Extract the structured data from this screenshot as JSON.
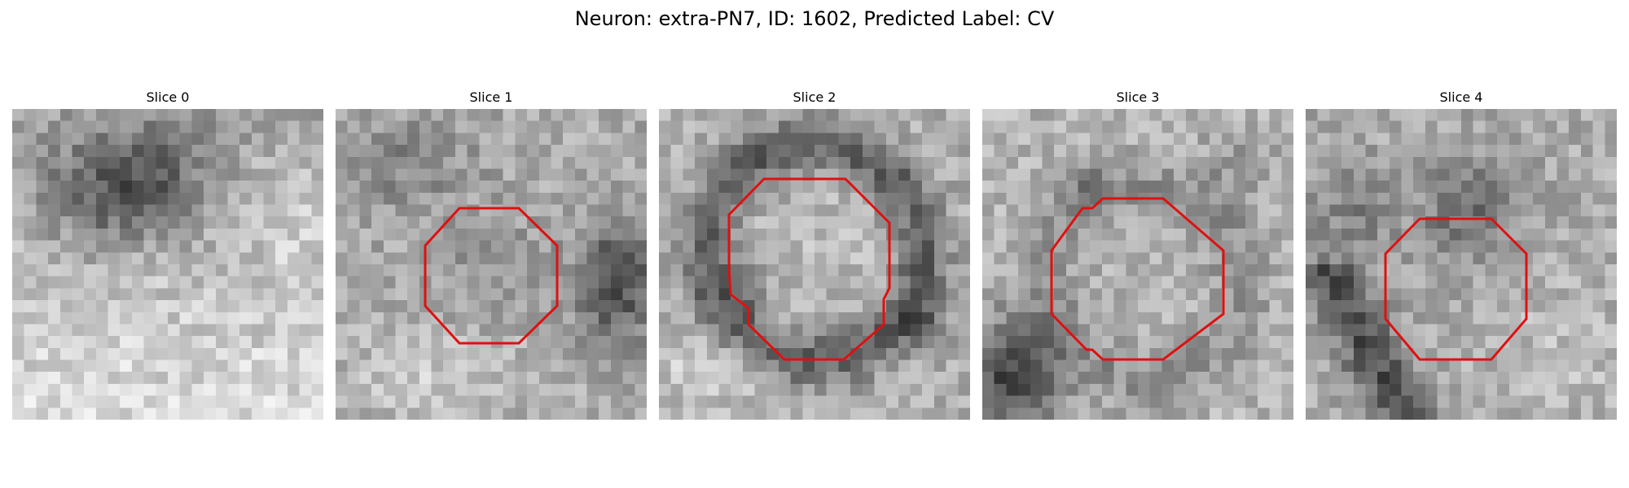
{
  "figure": {
    "title": "Neuron: extra-PN7, ID: 1602, Predicted Label: CV",
    "contour_color": "#e01010",
    "colormap": "gray"
  },
  "panels": [
    {
      "title": "Slice 0",
      "has_contour": false
    },
    {
      "title": "Slice 1",
      "has_contour": true
    },
    {
      "title": "Slice 2",
      "has_contour": true
    },
    {
      "title": "Slice 3",
      "has_contour": true
    },
    {
      "title": "Slice 4",
      "has_contour": true
    }
  ]
}
